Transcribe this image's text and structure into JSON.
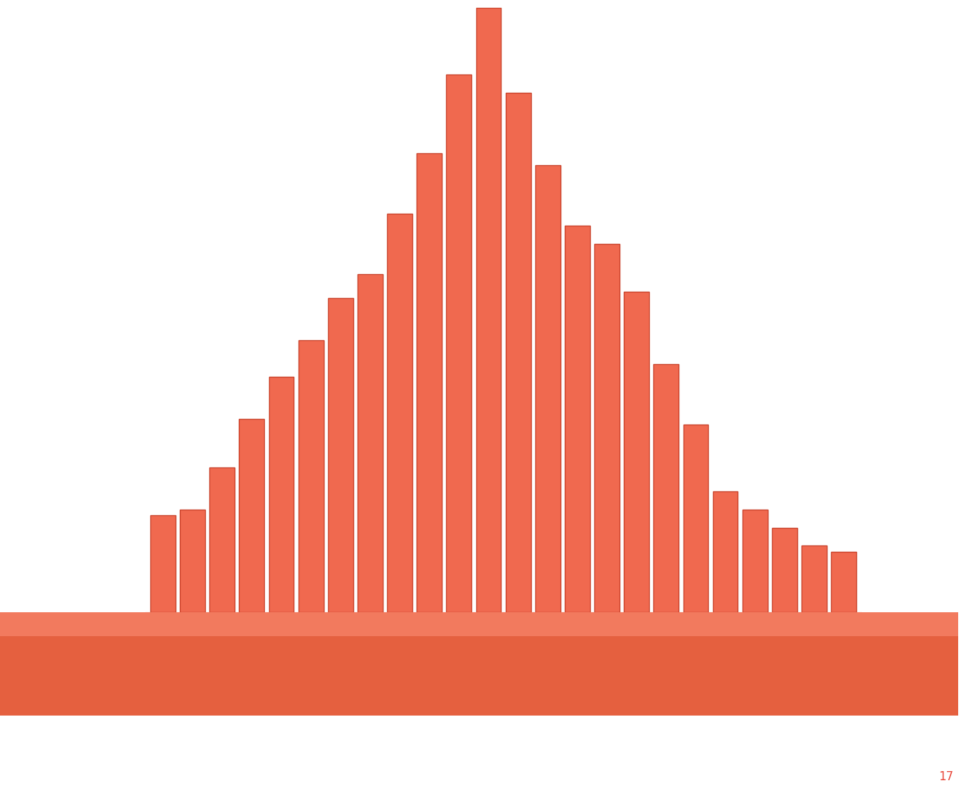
{
  "chart_data": {
    "type": "bar",
    "categories": [
      null,
      null,
      null,
      null,
      null,
      null,
      null,
      null,
      null,
      null,
      null,
      null,
      null,
      null,
      null,
      null,
      null,
      null,
      null,
      null,
      null,
      null,
      null,
      null
    ],
    "values": [
      16,
      17,
      24,
      32,
      39,
      45,
      52,
      56,
      66,
      76,
      89,
      100,
      86,
      74,
      64,
      61,
      53,
      41,
      31,
      20,
      17,
      14,
      11,
      10
    ],
    "color": "#f0694f",
    "ylim": [
      0,
      100
    ],
    "yticks": [],
    "grid": false,
    "tick_labels": false
  },
  "page_number": "17"
}
